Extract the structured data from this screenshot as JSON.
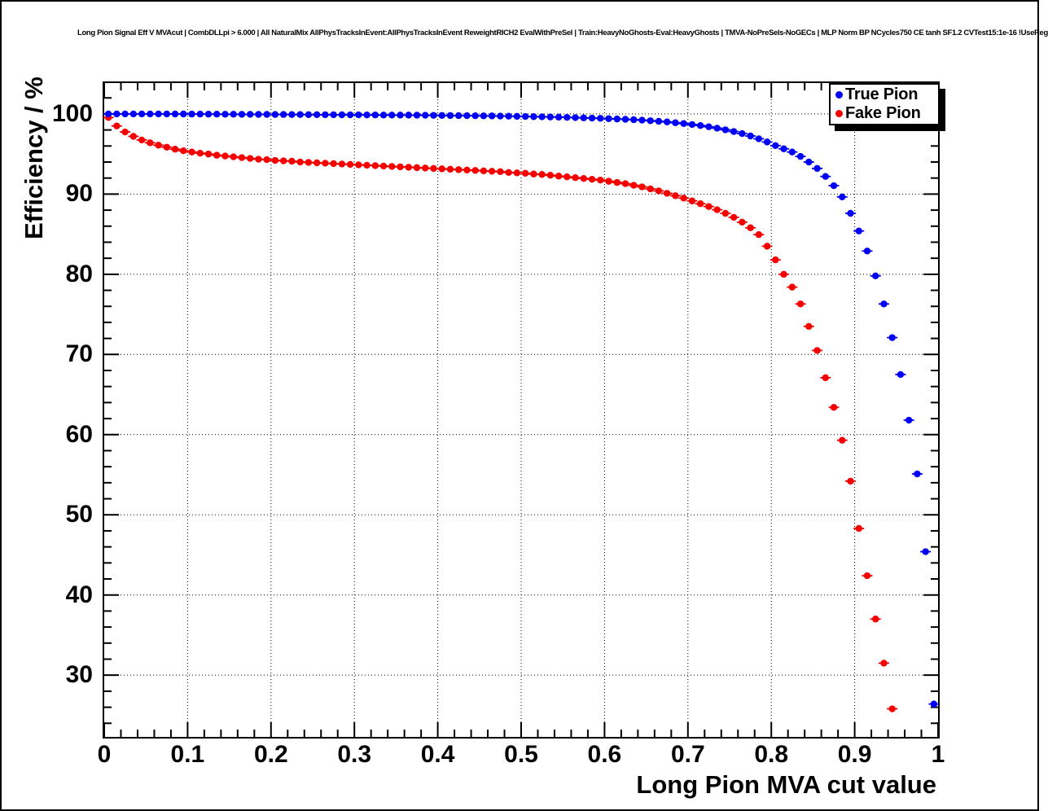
{
  "title": "Long Pion Signal Eff V MVAcut | CombDLLpi > 6.000 | All NaturalMix AllPhysTracksInEvent:AllPhysTracksInEvent ReweightRICH2 EvalWithPreSel | Train:HeavyNoGhosts-Eval:HeavyGhosts | TMVA-NoPreSels-NoGECs | MLP Norm BP NCycles750 CE tanh SF1.2 CVTest15:1e-16 !UseReg",
  "legend": {
    "entries": [
      {
        "label": "True Pion",
        "color": "#0000f5",
        "marker": "circle"
      },
      {
        "label": "Fake Pion",
        "color": "#f50000",
        "marker": "circle"
      }
    ]
  },
  "x_axis": {
    "label": "Long Pion MVA cut value",
    "ticks": [
      "0",
      "0.1",
      "0.2",
      "0.3",
      "0.4",
      "0.5",
      "0.6",
      "0.7",
      "0.8",
      "0.9",
      "1"
    ],
    "tick_values": [
      0,
      0.1,
      0.2,
      0.3,
      0.4,
      0.5,
      0.6,
      0.7,
      0.8,
      0.9,
      1
    ]
  },
  "y_axis": {
    "label": "Efficiency / %",
    "ticks": [
      "30",
      "40",
      "50",
      "60",
      "70",
      "80",
      "90",
      "100"
    ],
    "tick_values": [
      30,
      40,
      50,
      60,
      70,
      80,
      90,
      100
    ]
  },
  "chart_data": {
    "type": "scatter",
    "title": "Long Pion Signal Eff V MVAcut | CombDLLpi > 6.000 | All NaturalMix AllPhysTracksInEvent:AllPhysTracksInEvent ReweightRICH2 EvalWithPreSel | Train:HeavyNoGhosts-Eval:HeavyGhosts | TMVA-NoPreSels-NoGECs | MLP Norm BP NCycles750 CE tanh SF1.2 CVTest15:1e-16 !UseReg",
    "xlabel": "Long Pion MVA cut value",
    "ylabel": "Efficiency / %",
    "xlim": [
      0,
      1
    ],
    "ylim": [
      22.3,
      103.85
    ],
    "grid": true,
    "grid_style": "dotted",
    "legend_position": "top-right",
    "marker": "filled-circle-with-x-error-bars",
    "series": [
      {
        "name": "Fake Pion",
        "color": "#f50000",
        "x": [
          0.005,
          0.015,
          0.025,
          0.035,
          0.045,
          0.055,
          0.065,
          0.075,
          0.085,
          0.095,
          0.105,
          0.115,
          0.125,
          0.135,
          0.145,
          0.155,
          0.165,
          0.175,
          0.185,
          0.195,
          0.205,
          0.215,
          0.225,
          0.235,
          0.245,
          0.255,
          0.265,
          0.275,
          0.285,
          0.295,
          0.305,
          0.315,
          0.325,
          0.335,
          0.345,
          0.355,
          0.365,
          0.375,
          0.385,
          0.395,
          0.405,
          0.415,
          0.425,
          0.435,
          0.445,
          0.455,
          0.465,
          0.475,
          0.485,
          0.495,
          0.505,
          0.515,
          0.525,
          0.535,
          0.545,
          0.555,
          0.565,
          0.575,
          0.585,
          0.595,
          0.605,
          0.615,
          0.625,
          0.635,
          0.645,
          0.655,
          0.665,
          0.675,
          0.685,
          0.695,
          0.705,
          0.715,
          0.725,
          0.735,
          0.745,
          0.755,
          0.765,
          0.775,
          0.785,
          0.795,
          0.805,
          0.815,
          0.825,
          0.835,
          0.845,
          0.855,
          0.865,
          0.875,
          0.885,
          0.895,
          0.905,
          0.915,
          0.925,
          0.935,
          0.945
        ],
        "y": [
          99.55,
          98.5,
          97.75,
          97.2,
          96.75,
          96.4,
          96.1,
          95.85,
          95.6,
          95.4,
          95.25,
          95.1,
          95.0,
          94.85,
          94.75,
          94.65,
          94.55,
          94.45,
          94.35,
          94.3,
          94.2,
          94.15,
          94.1,
          94.0,
          93.95,
          93.9,
          93.85,
          93.8,
          93.75,
          93.7,
          93.65,
          93.6,
          93.55,
          93.5,
          93.45,
          93.4,
          93.35,
          93.3,
          93.25,
          93.2,
          93.15,
          93.1,
          93.05,
          93.0,
          92.95,
          92.9,
          92.85,
          92.8,
          92.7,
          92.65,
          92.6,
          92.5,
          92.45,
          92.35,
          92.25,
          92.15,
          92.05,
          91.95,
          91.85,
          91.75,
          91.6,
          91.45,
          91.3,
          91.1,
          90.9,
          90.65,
          90.4,
          90.1,
          89.8,
          89.5,
          89.15,
          88.8,
          88.45,
          88.05,
          87.6,
          87.1,
          86.5,
          85.8,
          84.95,
          83.5,
          81.8,
          80.0,
          78.4,
          76.3,
          73.5,
          70.5,
          67.1,
          63.4,
          59.3,
          54.2,
          48.3,
          42.4,
          37.0,
          31.5,
          25.8
        ]
      },
      {
        "name": "True Pion",
        "color": "#0000f5",
        "x": [
          0.005,
          0.015,
          0.025,
          0.035,
          0.045,
          0.055,
          0.065,
          0.075,
          0.085,
          0.095,
          0.105,
          0.115,
          0.125,
          0.135,
          0.145,
          0.155,
          0.165,
          0.175,
          0.185,
          0.195,
          0.205,
          0.215,
          0.225,
          0.235,
          0.245,
          0.255,
          0.265,
          0.275,
          0.285,
          0.295,
          0.305,
          0.315,
          0.325,
          0.335,
          0.345,
          0.355,
          0.365,
          0.375,
          0.385,
          0.395,
          0.405,
          0.415,
          0.425,
          0.435,
          0.445,
          0.455,
          0.465,
          0.475,
          0.485,
          0.495,
          0.505,
          0.515,
          0.525,
          0.535,
          0.545,
          0.555,
          0.565,
          0.575,
          0.585,
          0.595,
          0.605,
          0.615,
          0.625,
          0.635,
          0.645,
          0.655,
          0.665,
          0.675,
          0.685,
          0.695,
          0.705,
          0.715,
          0.725,
          0.735,
          0.745,
          0.755,
          0.765,
          0.775,
          0.785,
          0.795,
          0.805,
          0.815,
          0.825,
          0.835,
          0.845,
          0.855,
          0.865,
          0.875,
          0.885,
          0.895,
          0.905,
          0.915,
          0.925,
          0.935,
          0.945,
          0.955,
          0.965,
          0.975,
          0.985,
          0.995
        ],
        "y": [
          100,
          100,
          100,
          100,
          100,
          100,
          100,
          100,
          99.99,
          99.99,
          99.98,
          99.98,
          99.97,
          99.97,
          99.96,
          99.96,
          99.95,
          99.95,
          99.94,
          99.94,
          99.93,
          99.93,
          99.92,
          99.92,
          99.91,
          99.91,
          99.9,
          99.9,
          99.89,
          99.88,
          99.88,
          99.87,
          99.87,
          99.86,
          99.86,
          99.85,
          99.85,
          99.84,
          99.83,
          99.82,
          99.81,
          99.8,
          99.79,
          99.78,
          99.77,
          99.76,
          99.75,
          99.73,
          99.72,
          99.7,
          99.68,
          99.66,
          99.64,
          99.62,
          99.6,
          99.57,
          99.54,
          99.51,
          99.48,
          99.45,
          99.41,
          99.37,
          99.33,
          99.28,
          99.22,
          99.15,
          99.08,
          99.0,
          98.9,
          98.8,
          98.68,
          98.55,
          98.4,
          98.22,
          98.02,
          97.8,
          97.55,
          97.25,
          96.9,
          96.5,
          96.05,
          95.65,
          95.25,
          94.7,
          94.0,
          93.2,
          92.2,
          91.05,
          89.65,
          87.6,
          85.4,
          82.9,
          79.8,
          76.3,
          72.1,
          67.5,
          61.8,
          55.1,
          45.4,
          26.4
        ]
      }
    ]
  }
}
